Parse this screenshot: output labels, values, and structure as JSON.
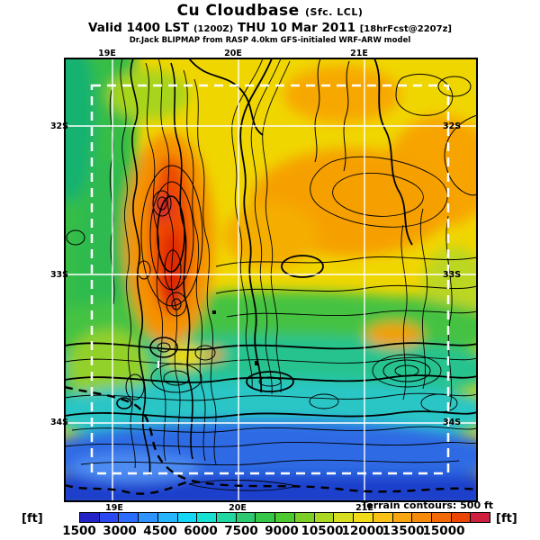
{
  "title": {
    "product": "Cu Cloudbase",
    "product_suffix": "(Sfc. LCL)",
    "valid_main": "Valid 1400 LST",
    "valid_zulu": "(1200Z)",
    "valid_date": "THU 10 Mar 2011",
    "fcst_tag": "[18hrFcst@2207z]",
    "model_line": "Dr.Jack BLIPMAP from RASP 4.0km GFS-initialed WRF-ARW model"
  },
  "axes": {
    "top": [
      "19E",
      "20E",
      "21E"
    ],
    "bottom": [
      "19E",
      "20E",
      "21E"
    ],
    "left": [
      "32S",
      "33S",
      "34S"
    ],
    "right": [
      "32S",
      "33S",
      "34S"
    ]
  },
  "legend": {
    "unit_left": "[ft]",
    "unit_right": "[ft]",
    "terrain_note": "Terrain contours: 500 ft",
    "labels": [
      "1500",
      "3000",
      "4500",
      "6000",
      "7500",
      "9000",
      "10500",
      "12000",
      "13500",
      "15000"
    ],
    "colors": [
      "#2323c8",
      "#2b49f0",
      "#2e6cff",
      "#2e92ff",
      "#27b4ff",
      "#14d6f5",
      "#16e0d0",
      "#22d6a0",
      "#2cc972",
      "#35c64a",
      "#4cc930",
      "#7ccf26",
      "#aad822",
      "#d6de1f",
      "#f2dc1a",
      "#fac214",
      "#f8a60f",
      "#f58a0b",
      "#f16a07",
      "#ea4504",
      "#cf1f3f"
    ]
  },
  "map": {
    "domain_box_color": "#ffffff",
    "grid_color": "#ffffff",
    "contour_color": "#000000",
    "units": "ft",
    "value_range": [
      1500,
      15000
    ]
  }
}
